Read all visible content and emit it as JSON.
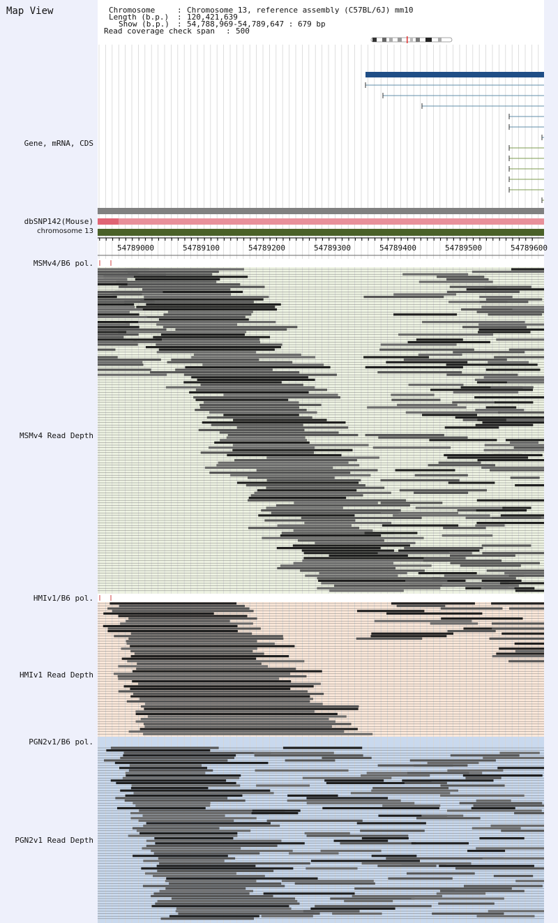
{
  "app": {
    "title": "Map View"
  },
  "header": {
    "chromosome_key": "Chromosome",
    "chromosome_value": "Chromosome 13, reference assembly (C57BL/6J) mm10",
    "length_key": "Length (b.p.)",
    "length_value": "120,421,639",
    "show_key": "Show (b.p.)",
    "show_value": "54,788,969-54,789,647 : 679 bp",
    "coverage_key": "Read coverage check span",
    "coverage_value": "500"
  },
  "tracks": {
    "gene": {
      "label": "Gene, mRNA, CDS"
    },
    "dbsnp": {
      "label": "dbSNP142(Mouse)"
    },
    "chromosome": {
      "label": "chromosome 13"
    },
    "msm_pol": {
      "label": "MSMv4/B6 pol."
    },
    "msm_depth": {
      "label": "MSMv4 Read Depth"
    },
    "hmi_pol": {
      "label": "HMIv1/B6 pol."
    },
    "hmi_depth": {
      "label": "HMIv1 Read Depth"
    },
    "pgn_pol": {
      "label": "PGN2v1/B6 pol."
    },
    "pgn_depth": {
      "label": "PGN2v1 Read Depth"
    }
  },
  "ruler": {
    "ticks": [
      "54789000",
      "54789100",
      "54789200",
      "54789300",
      "54789400",
      "54789500",
      "54789600"
    ]
  },
  "colors": {
    "panel_bg": "#eef0fb",
    "gene_bar": "#1f4e86",
    "mrna_line": "#5f8ea8",
    "cds_line": "#7d9b4f",
    "grey_bar": "#808080",
    "dbsnp_bar": "#e8909a",
    "chromosome_bar": "#4a6128",
    "msm_bg": "#eef3e3",
    "hmi_bg": "#fbe8da",
    "pgn_bg": "#c9d9ee"
  }
}
